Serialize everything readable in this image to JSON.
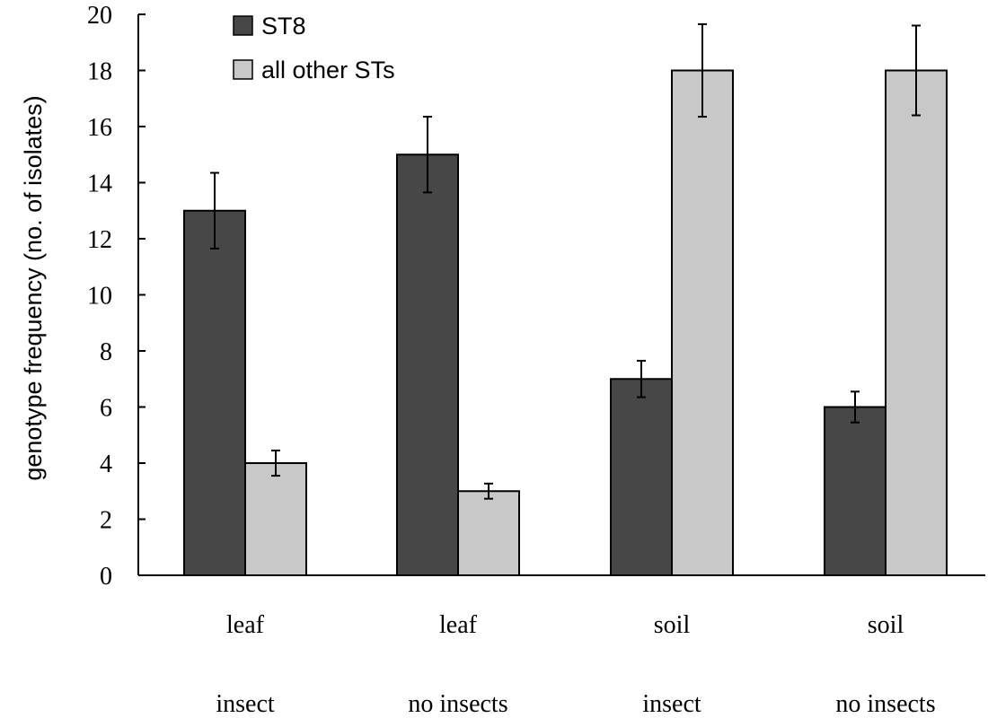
{
  "chart_data": {
    "type": "bar",
    "categories": [
      [
        "leaf",
        "insect"
      ],
      [
        "leaf",
        "no insects"
      ],
      [
        "soil",
        "insect"
      ],
      [
        "soil",
        "no insects"
      ]
    ],
    "series": [
      {
        "name": "ST8",
        "color": "#474747",
        "values": [
          13,
          15,
          7,
          6
        ],
        "errors": [
          1.35,
          1.35,
          0.65,
          0.55
        ]
      },
      {
        "name": "all other STs",
        "color": "#c8c8c8",
        "values": [
          4,
          3,
          18,
          18
        ],
        "errors": [
          0.45,
          0.27,
          1.65,
          1.6
        ]
      }
    ],
    "ylabel": "genotype frequency (no. of isolates)",
    "xlabel": "",
    "title": "",
    "ylim": [
      0,
      20
    ],
    "yticks": [
      0,
      2,
      4,
      6,
      8,
      10,
      12,
      14,
      16,
      18,
      20
    ],
    "grid": false,
    "legend_position": "top-left"
  }
}
